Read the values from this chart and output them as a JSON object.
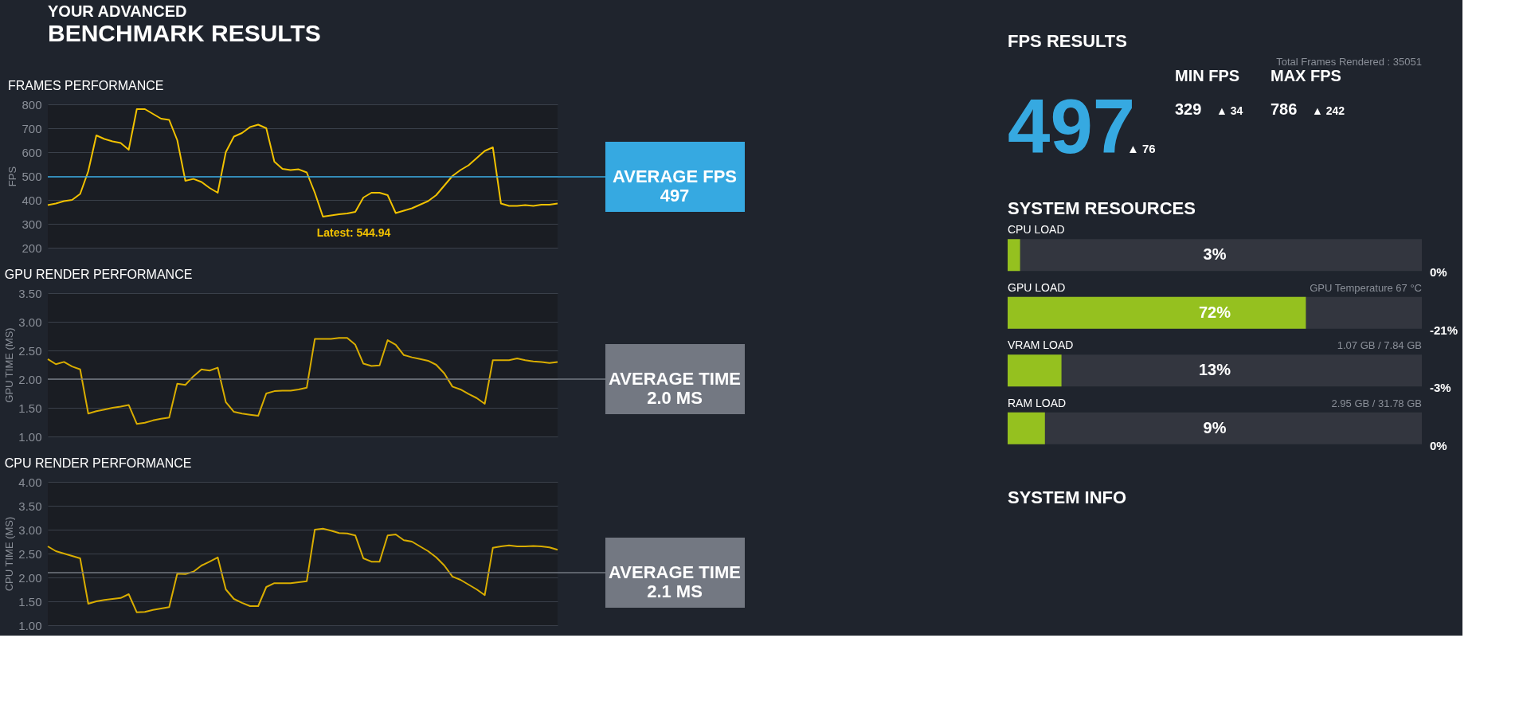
{
  "chart_data": [
    {
      "type": "other",
      "title": "YOUR ADVANCED",
      "subtitle": "BENCHMARK RESULTS"
    },
    {
      "type": "line",
      "title": "FRAMES PERFORMANCE",
      "ylabel": "FPS",
      "categories": [
        null,
        null,
        null,
        null,
        null,
        null,
        null,
        null,
        null,
        null,
        null,
        null,
        null,
        null,
        null,
        null,
        null,
        null,
        null,
        null,
        null,
        null,
        null,
        null,
        null,
        null,
        null,
        null,
        null,
        null,
        null,
        null,
        null,
        null,
        null,
        null,
        null,
        null,
        null,
        null,
        null,
        null,
        null,
        null,
        null,
        null,
        null,
        null,
        null,
        null,
        null,
        null,
        null,
        null,
        null,
        null,
        null,
        null,
        null,
        null,
        null,
        null,
        null,
        null
      ],
      "series": [
        {
          "color": "#f2c200",
          "values": [
            378,
            385,
            395,
            400,
            425,
            520,
            670,
            655,
            645,
            638,
            610,
            780,
            780,
            760,
            740,
            735,
            650,
            480,
            488,
            475,
            450,
            430,
            600,
            665,
            680,
            705,
            715,
            700,
            560,
            530,
            525,
            528,
            515,
            430,
            330,
            335,
            340,
            343,
            350,
            410,
            430,
            430,
            420,
            345,
            355,
            365,
            380,
            395,
            420,
            460,
            500,
            525,
            545,
            575,
            605,
            620,
            385,
            375,
            375,
            378,
            375,
            380,
            380,
            385
          ]
        }
      ],
      "ylim": [
        200,
        800
      ],
      "yticks": [
        200,
        300,
        400,
        500,
        600,
        700,
        800
      ],
      "grid": "y",
      "tick_labels": "y",
      "ref_lines": [
        {
          "axis": "y",
          "value": 497,
          "label": "AVERAGE FPS\n497",
          "color": "#36a9e1"
        }
      ],
      "annotations": [
        "Latest: 544.94"
      ]
    },
    {
      "type": "line",
      "title": "GPU RENDER PERFORMANCE",
      "ylabel": "GPU TIME (MS)",
      "categories": [
        null,
        null,
        null,
        null,
        null,
        null,
        null,
        null,
        null,
        null,
        null,
        null,
        null,
        null,
        null,
        null,
        null,
        null,
        null,
        null,
        null,
        null,
        null,
        null,
        null,
        null,
        null,
        null,
        null,
        null,
        null,
        null,
        null,
        null,
        null,
        null,
        null,
        null,
        null,
        null,
        null,
        null,
        null,
        null,
        null,
        null,
        null,
        null,
        null,
        null,
        null,
        null,
        null,
        null,
        null,
        null,
        null,
        null,
        null,
        null,
        null,
        null,
        null,
        null
      ],
      "series": [
        {
          "color": "#d9ad00",
          "values": [
            2.35,
            2.26,
            2.3,
            2.22,
            2.17,
            1.4,
            1.44,
            1.47,
            1.5,
            1.52,
            1.55,
            1.22,
            1.24,
            1.28,
            1.31,
            1.33,
            1.92,
            1.9,
            2.05,
            2.17,
            2.15,
            2.2,
            1.6,
            1.43,
            1.4,
            1.38,
            1.36,
            1.75,
            1.79,
            1.8,
            1.8,
            1.82,
            1.85,
            2.7,
            2.7,
            2.7,
            2.72,
            2.72,
            2.6,
            2.27,
            2.23,
            2.24,
            2.68,
            2.6,
            2.42,
            2.38,
            2.35,
            2.32,
            2.25,
            2.1,
            1.87,
            1.82,
            1.74,
            1.67,
            1.57,
            2.33,
            2.33,
            2.33,
            2.36,
            2.33,
            2.31,
            2.3,
            2.28,
            2.3
          ]
        }
      ],
      "ylim": [
        1,
        3.5
      ],
      "yticks": [
        {
          "value": 1,
          "label": "1.00"
        },
        {
          "value": 1.5,
          "label": "1.50"
        },
        {
          "value": 2,
          "label": "2.00"
        },
        {
          "value": 2.5,
          "label": "2.50"
        },
        {
          "value": 3,
          "label": "3.00"
        },
        {
          "value": 3.5,
          "label": "3.50"
        }
      ],
      "grid": "y",
      "tick_labels": "y",
      "ref_lines": [
        {
          "axis": "y",
          "value": 2.0,
          "label": "AVERAGE TIME\n2.0 MS",
          "color": "#737882"
        }
      ]
    },
    {
      "type": "line",
      "title": "CPU RENDER PERFORMANCE",
      "ylabel": "CPU TIME (MS)",
      "categories": [
        null,
        null,
        null,
        null,
        null,
        null,
        null,
        null,
        null,
        null,
        null,
        null,
        null,
        null,
        null,
        null,
        null,
        null,
        null,
        null,
        null,
        null,
        null,
        null,
        null,
        null,
        null,
        null,
        null,
        null,
        null,
        null,
        null,
        null,
        null,
        null,
        null,
        null,
        null,
        null,
        null,
        null,
        null,
        null,
        null,
        null,
        null,
        null,
        null,
        null,
        null,
        null,
        null,
        null,
        null,
        null,
        null,
        null,
        null,
        null,
        null,
        null,
        null,
        null
      ],
      "series": [
        {
          "color": "#d9ad00",
          "values": [
            2.65,
            2.55,
            2.5,
            2.45,
            2.4,
            1.45,
            1.5,
            1.53,
            1.55,
            1.57,
            1.65,
            1.27,
            1.28,
            1.32,
            1.35,
            1.38,
            2.08,
            2.07,
            2.12,
            2.25,
            2.33,
            2.42,
            1.75,
            1.55,
            1.47,
            1.4,
            1.4,
            1.8,
            1.88,
            1.88,
            1.88,
            1.9,
            1.92,
            3.0,
            3.02,
            2.98,
            2.93,
            2.92,
            2.88,
            2.4,
            2.33,
            2.33,
            2.88,
            2.9,
            2.78,
            2.75,
            2.65,
            2.55,
            2.42,
            2.25,
            2.02,
            1.95,
            1.85,
            1.75,
            1.63,
            2.62,
            2.65,
            2.67,
            2.65,
            2.65,
            2.66,
            2.65,
            2.63,
            2.58
          ]
        }
      ],
      "ylim": [
        1,
        4
      ],
      "yticks": [
        {
          "value": 1,
          "label": "1.00"
        },
        {
          "value": 1.5,
          "label": "1.50"
        },
        {
          "value": 2,
          "label": "2.00"
        },
        {
          "value": 2.5,
          "label": "2.50"
        },
        {
          "value": 3,
          "label": "3.00"
        },
        {
          "value": 3.5,
          "label": "3.50"
        },
        {
          "value": 4,
          "label": "4.00"
        }
      ],
      "grid": "y",
      "tick_labels": "y",
      "ref_lines": [
        {
          "axis": "y",
          "value": 2.1,
          "label": "AVERAGE TIME\n2.1 MS",
          "color": "#737882"
        }
      ]
    },
    {
      "type": "other",
      "title": "FPS RESULTS",
      "annotations": [
        "Total Frames Rendered : 35051",
        "497",
        "▲ 76",
        "MIN FPS",
        "329",
        "▲ 34",
        "MAX FPS",
        "786",
        "▲ 242"
      ]
    },
    {
      "type": "bar",
      "orientation": "horizontal",
      "title": "SYSTEM RESOURCES",
      "categories": [
        "CPU LOAD",
        "GPU LOAD",
        "VRAM LOAD",
        "RAM LOAD"
      ],
      "values": [
        3,
        72,
        13,
        9
      ],
      "value_labels": [
        "3%",
        "72%",
        "13%",
        "9%"
      ],
      "color": "#95c11f",
      "xlim": [
        0,
        100
      ],
      "annotations": [
        "0%",
        "-21%",
        "GPU Temperature 67 °C",
        "-3%",
        "1.07 GB / 7.84 GB",
        "0%",
        "2.95 GB / 31.78 GB"
      ]
    },
    {
      "type": "other",
      "title": "SYSTEM INFO"
    }
  ]
}
